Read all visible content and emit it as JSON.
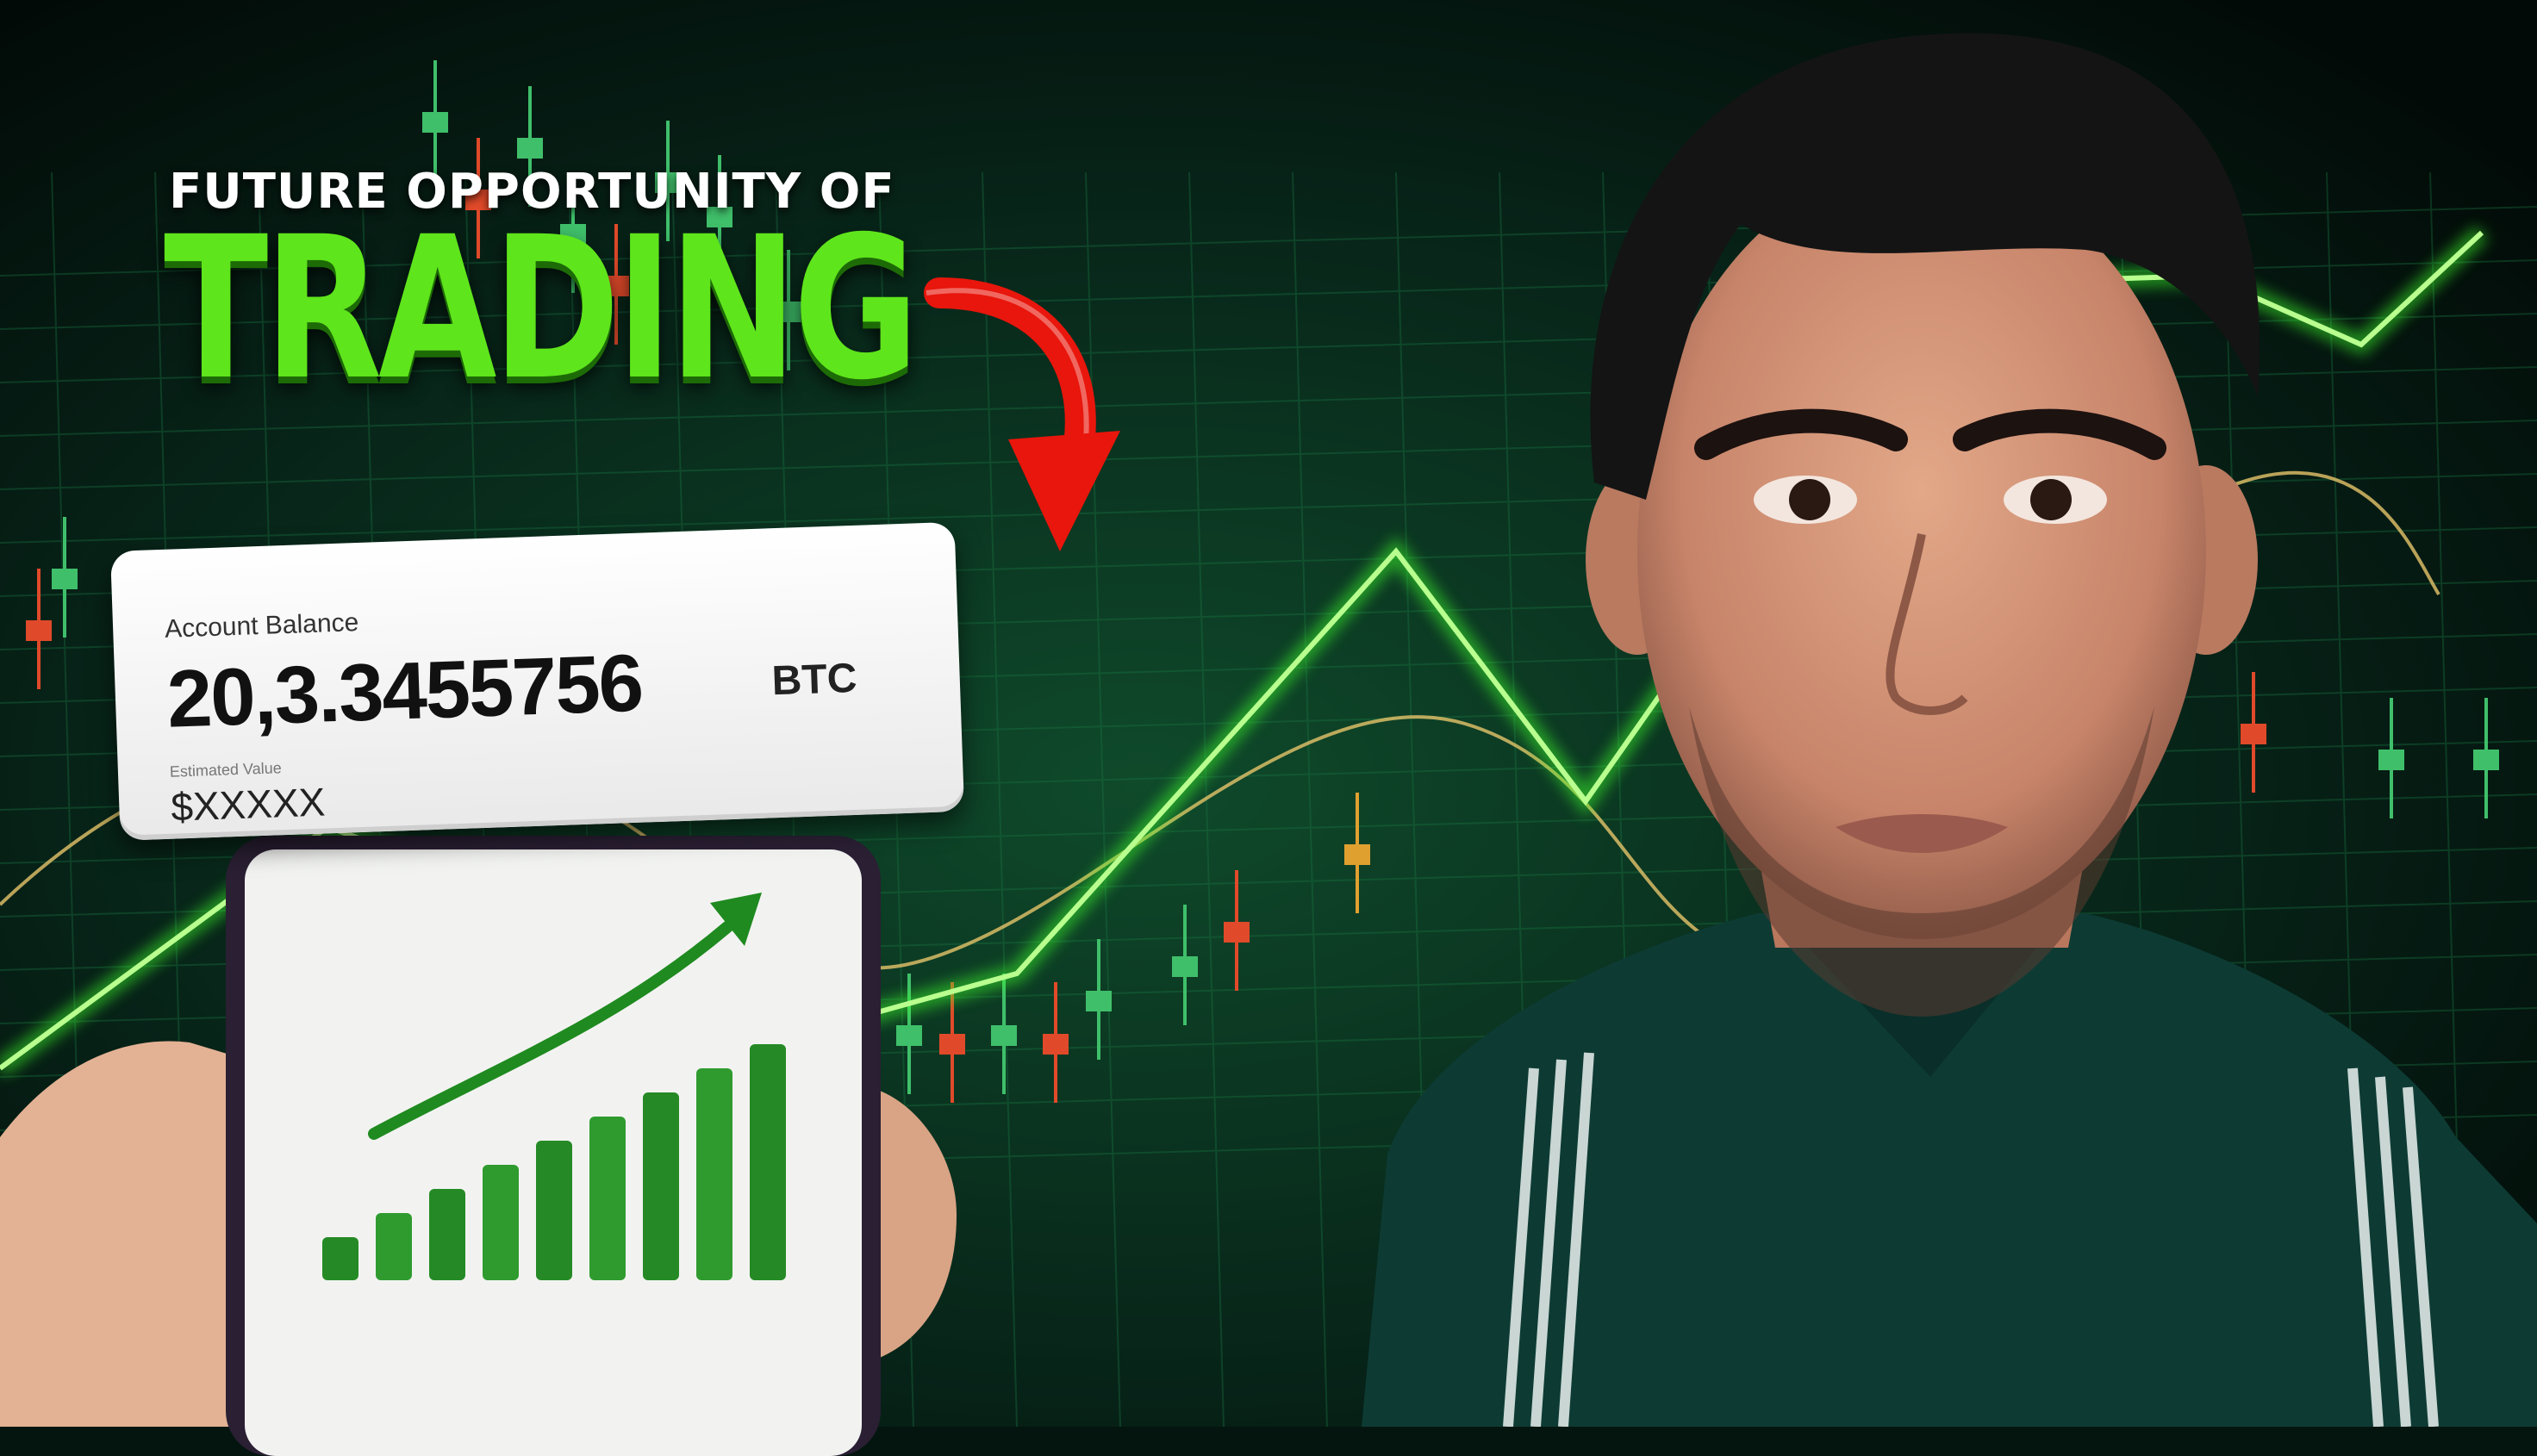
{
  "headline": {
    "line1": "FUTURE OPPORTUNITY OF",
    "line2": "TRADING"
  },
  "balance_card": {
    "label": "Account Balance",
    "value": "20,3.3455756",
    "unit": "BTC",
    "sublabel": "Estimated Value",
    "subvalue": "$XXXXX"
  },
  "colors": {
    "background": "#04150f",
    "accent_green": "#5fe51c",
    "arrow_red": "#e8160c",
    "grid_green": "#1b7a45"
  },
  "icons": [
    "red-curved-arrow-icon",
    "growth-arrow-icon"
  ]
}
